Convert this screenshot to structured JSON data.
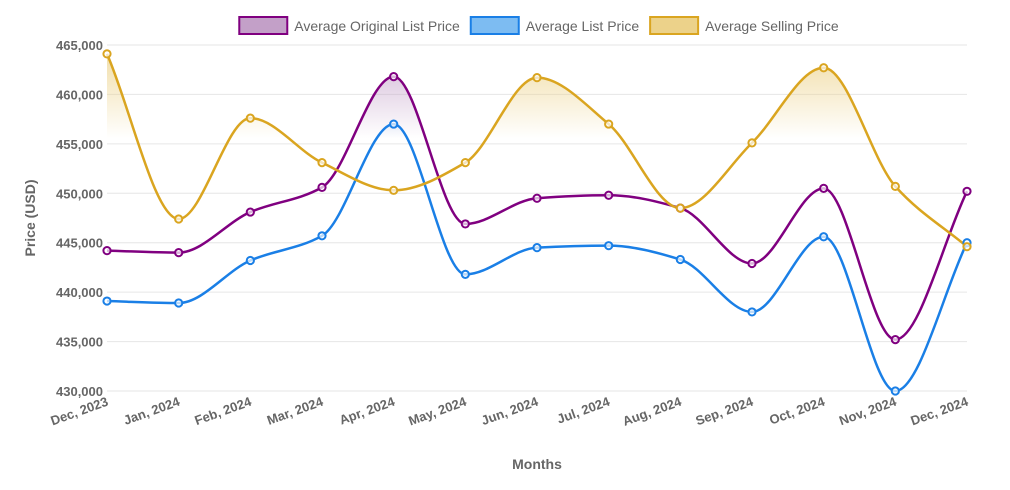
{
  "chart_data": {
    "type": "line",
    "title": "",
    "xlabel": "Months",
    "ylabel": "Price (USD)",
    "categories": [
      "Dec, 2023",
      "Jan, 2024",
      "Feb, 2024",
      "Mar, 2024",
      "Apr, 2024",
      "May, 2024",
      "Jun, 2024",
      "Jul, 2024",
      "Aug, 2024",
      "Sep, 2024",
      "Oct, 2024",
      "Nov, 2024",
      "Dec, 2024"
    ],
    "yticks": [
      "430,000",
      "435,000",
      "440,000",
      "445,000",
      "450,000",
      "455,000",
      "460,000",
      "465,000"
    ],
    "ylim": [
      430000,
      465000
    ],
    "ystep": 5000,
    "legend_position": "top",
    "grid": "horizontal",
    "series": [
      {
        "name": "Average Original List Price",
        "color": "#800080",
        "fill": "#c3a0c8",
        "values": [
          444200,
          444000,
          448100,
          450600,
          461800,
          446900,
          449500,
          449800,
          448500,
          442900,
          450500,
          435200,
          450200
        ]
      },
      {
        "name": "Average List Price",
        "color": "#1a7fe6",
        "fill": "#7dbcf2",
        "values": [
          439100,
          438900,
          443200,
          445700,
          457000,
          441800,
          444500,
          444700,
          443300,
          438000,
          445600,
          430000,
          445000
        ]
      },
      {
        "name": "Average Selling Price",
        "color": "#daa520",
        "fill": "#ecd28a",
        "values": [
          464100,
          447400,
          457600,
          453100,
          450300,
          453100,
          461700,
          457000,
          448500,
          455100,
          462700,
          450700,
          444600
        ]
      }
    ]
  }
}
